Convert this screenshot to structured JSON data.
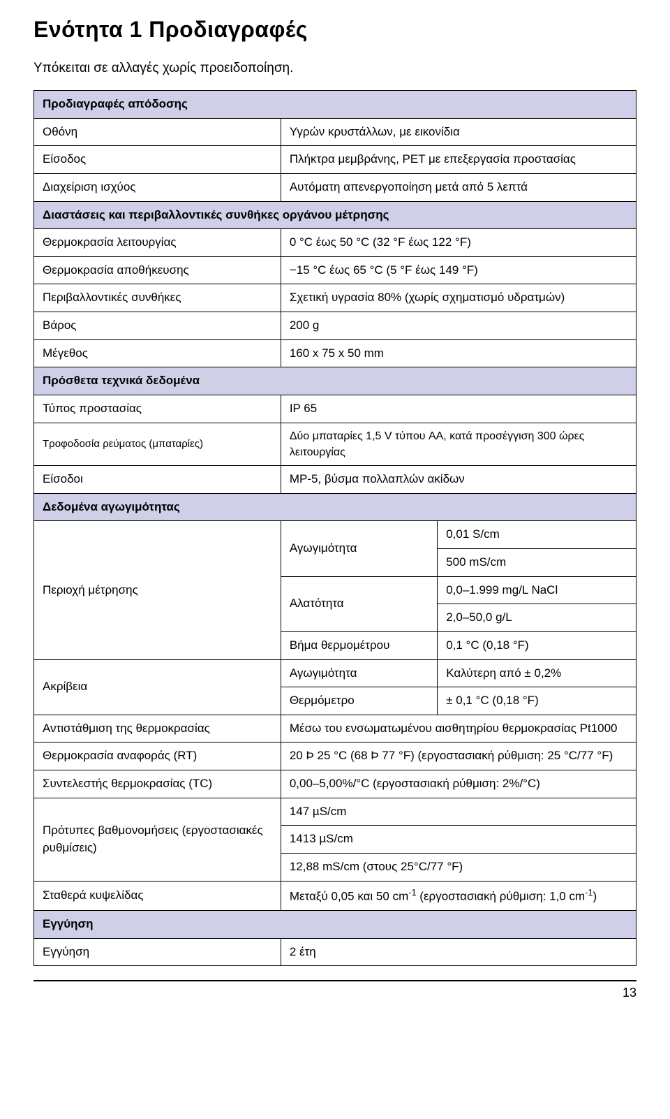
{
  "title": "Ενότητα 1   Προδιαγραφές",
  "subtitle": "Υπόκειται σε αλλαγές χωρίς προειδοποίηση.",
  "sections": {
    "performance": {
      "header": "Προδιαγραφές απόδοσης",
      "rows": {
        "display_l": "Οθόνη",
        "display_r": "Υγρών κρυστάλλων, με εικονίδια",
        "input_l": "Είσοδος",
        "input_r": "Πλήκτρα μεμβράνης, PET με επεξεργασία προστασίας",
        "power_l": "Διαχείριση ισχύος",
        "power_r": "Αυτόματη απενεργοποίηση μετά από 5 λεπτά"
      }
    },
    "dimensions": {
      "header": "Διαστάσεις και περιβαλλοντικές συνθήκες οργάνου μέτρησης",
      "rows": {
        "optemp_l": "Θερμοκρασία λειτουργίας",
        "optemp_r": "0 °C έως 50 °C (32 °F έως 122 °F)",
        "storetemp_l": "Θερμοκρασία αποθήκευσης",
        "storetemp_r": "−15 °C έως 65 °C (5 °F έως 149 °F)",
        "env_l": "Περιβαλλοντικές συνθήκες",
        "env_r": "Σχετική υγρασία 80% (χωρίς σχηματισμό υδρατμών)",
        "weight_l": "Βάρος",
        "weight_r": "200 g",
        "size_l": "Μέγεθος",
        "size_r": "160 x 75 x 50 mm"
      }
    },
    "tech": {
      "header": "Πρόσθετα τεχνικά δεδομένα",
      "rows": {
        "prot_l": "Τύπος προστασίας",
        "prot_r": "IP 65",
        "batt_l": "Τροφοδοσία ρεύματος (μπαταρίες)",
        "batt_r": "Δύο μπαταρίες 1,5 V τύπου AA, κατά προσέγγιση 300 ώρες λειτουργίας",
        "inputs_l": "Είσοδοι",
        "inputs_r": "MP-5, βύσμα πολλαπλών ακίδων"
      }
    },
    "conductivity": {
      "header": "Δεδομένα αγωγιμότητας",
      "measrange_l": "Περιοχή μέτρησης",
      "cond_lbl": "Αγωγιμότητα",
      "cond_v1": "0,01 S/cm",
      "cond_v2": "500 mS/cm",
      "salt_lbl": "Αλατότητα",
      "salt_v1": "0,0–1.999 mg/L NaCl",
      "salt_v2": "2,0–50,0 g/L",
      "thermstep_lbl": "Βήμα θερμομέτρου",
      "thermstep_v": "0,1 °C (0,18 °F)",
      "accuracy_l": " Ακρίβεια",
      "acc_cond_lbl": "Αγωγιμότητα",
      "acc_cond_v": "Καλύτερη από ± 0,2%",
      "acc_therm_lbl": "Θερμόμετρο",
      "acc_therm_v": "± 0,1 °C (0,18 °F)",
      "tempcomp_l": "Αντιστάθμιση της θερμοκρασίας",
      "tempcomp_r": "Μέσω του ενσωματωμένου αισθητηρίου θερμοκρασίας Pt1000",
      "reftemp_l": "Θερμοκρασία αναφοράς (RT)",
      "reftemp_r": "20 Þ 25 °C (68 Þ 77 °F) (εργοστασιακή ρύθμιση: 25 °C/77 °F)",
      "tc_l": "Συντελεστής θερμοκρασίας (TC)",
      "tc_r": "0,00–5,00%/°C (εργοστασιακή ρύθμιση: 2%/°C)",
      "calib_l": "Πρότυπες βαθμονομήσεις (εργοστασιακές ρυθμίσεις)",
      "calib_v1": "147 µS/cm",
      "calib_v2": "1413 µS/cm",
      "calib_v3": "12,88 mS/cm (στους 25°C/77 °F)",
      "cellconst_l": "Σταθερά κυψελίδας"
    },
    "warranty": {
      "header": "Εγγύηση",
      "row_l": "Εγγύηση",
      "row_r": "2 έτη"
    }
  },
  "cell_constant": {
    "prefix": "Μεταξύ 0,05 και 50 cm",
    "sup1": "-1",
    "mid": " (εργοστασιακή ρύθμιση: 1,0 cm",
    "sup2": "-1",
    "suffix": ")"
  },
  "page_number": "13"
}
